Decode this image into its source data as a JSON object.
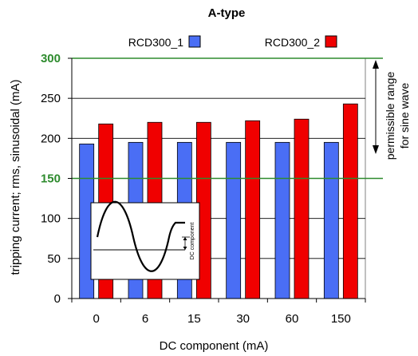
{
  "chart_data": {
    "type": "bar",
    "title": "A-type",
    "xlabel": "DC component (mA)",
    "ylabel": "tripping current; rms, sinusoidal (mA)",
    "categories": [
      "0",
      "6",
      "15",
      "30",
      "60",
      "150"
    ],
    "series": [
      {
        "name": "RCD300_1",
        "color": "#4a6ef5",
        "values": [
          193,
          195,
          195,
          195,
          195,
          195
        ]
      },
      {
        "name": "RCD300_2",
        "color": "#f00000",
        "values": [
          218,
          220,
          220,
          222,
          224,
          243
        ]
      }
    ],
    "ylim": [
      0,
      300
    ],
    "yticks": [
      {
        "label": "0",
        "value": 0
      },
      {
        "label": "50",
        "value": 50
      },
      {
        "label": "100",
        "value": 100
      },
      {
        "label": "150",
        "value": 150,
        "highlight": true
      },
      {
        "label": "200",
        "value": 200
      },
      {
        "label": "250",
        "value": 250
      },
      {
        "label": "300",
        "value": 300,
        "highlight": true
      }
    ],
    "grid": true,
    "legend": "top",
    "reference_lines": [
      150,
      300
    ],
    "reference_color": "#2e8b2e",
    "range_annotation": {
      "text_line1": "permissible range",
      "text_line2": "for sine wave",
      "from": 150,
      "to": 300
    },
    "inset_label": "DC component"
  }
}
